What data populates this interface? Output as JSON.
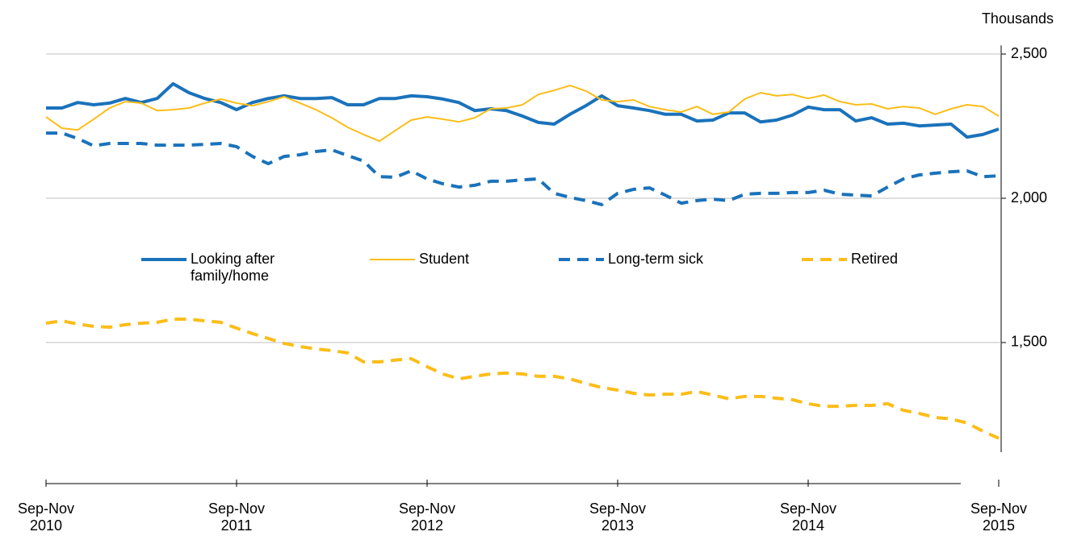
{
  "chart_data": {
    "type": "line",
    "y_unit_label": "Thousands",
    "categories": [
      "Sep-Nov 2010",
      null,
      null,
      null,
      null,
      null,
      null,
      null,
      null,
      null,
      null,
      null,
      "Sep-Nov 2011",
      null,
      null,
      null,
      null,
      null,
      null,
      null,
      null,
      null,
      null,
      null,
      "Sep-Nov 2012",
      null,
      null,
      null,
      null,
      null,
      null,
      null,
      null,
      null,
      null,
      null,
      "Sep-Nov 2013",
      null,
      null,
      null,
      null,
      null,
      null,
      null,
      null,
      null,
      null,
      null,
      "Sep-Nov 2014",
      null,
      null,
      null,
      null,
      null,
      null,
      null,
      null,
      null,
      null,
      null,
      "Sep-Nov 2015"
    ],
    "ylim": [
      1120,
      2530
    ],
    "yticks": [
      {
        "value": 1500,
        "label": "1,500"
      },
      {
        "value": 2000,
        "label": "2,000"
      },
      {
        "value": 2500,
        "label": "2,500"
      }
    ],
    "grid": true,
    "y_axis_side": "right",
    "legend": "center",
    "series": [
      {
        "name": "Looking after family/home",
        "color": "#1a72bb",
        "dashed": false,
        "width": 4,
        "values": [
          2313,
          2313,
          2332,
          2324,
          2330,
          2346,
          2332,
          2346,
          2397,
          2366,
          2346,
          2332,
          2307,
          2332,
          2346,
          2355,
          2346,
          2346,
          2349,
          2324,
          2324,
          2346,
          2346,
          2355,
          2352,
          2344,
          2332,
          2304,
          2310,
          2304,
          2285,
          2263,
          2257,
          2291,
          2321,
          2355,
          2321,
          2313,
          2304,
          2291,
          2291,
          2268,
          2271,
          2296,
          2296,
          2265,
          2271,
          2288,
          2316,
          2307,
          2307,
          2268,
          2279,
          2257,
          2260,
          2251,
          2254,
          2257,
          2212,
          2221,
          2240
        ]
      },
      {
        "name": "Student",
        "color": "#fbbd19",
        "dashed": false,
        "width": 2,
        "values": [
          2282,
          2243,
          2237,
          2274,
          2313,
          2335,
          2330,
          2304,
          2307,
          2313,
          2330,
          2344,
          2330,
          2321,
          2335,
          2352,
          2330,
          2307,
          2279,
          2246,
          2221,
          2198,
          2235,
          2271,
          2282,
          2274,
          2265,
          2279,
          2310,
          2313,
          2324,
          2360,
          2374,
          2391,
          2372,
          2341,
          2335,
          2341,
          2318,
          2307,
          2299,
          2318,
          2291,
          2299,
          2344,
          2366,
          2355,
          2360,
          2346,
          2358,
          2335,
          2324,
          2327,
          2310,
          2318,
          2313,
          2291,
          2310,
          2324,
          2318,
          2285
        ]
      },
      {
        "name": "Long-term sick",
        "color": "#1a72bb",
        "dashed": true,
        "width": 4,
        "values": [
          2226,
          2226,
          2207,
          2182,
          2190,
          2190,
          2190,
          2184,
          2184,
          2184,
          2187,
          2190,
          2179,
          2145,
          2120,
          2145,
          2151,
          2162,
          2168,
          2148,
          2129,
          2075,
          2073,
          2095,
          2067,
          2050,
          2039,
          2045,
          2059,
          2059,
          2064,
          2067,
          2017,
          2003,
          1992,
          1978,
          2017,
          2031,
          2036,
          2011,
          1983,
          1992,
          1997,
          1992,
          2014,
          2017,
          2017,
          2020,
          2020,
          2028,
          2014,
          2011,
          2008,
          2039,
          2067,
          2081,
          2087,
          2092,
          2095,
          2075,
          2078
        ]
      },
      {
        "name": "Retired",
        "color": "#fbbd19",
        "dashed": true,
        "width": 4,
        "values": [
          1567,
          1575,
          1564,
          1556,
          1553,
          1562,
          1567,
          1570,
          1581,
          1581,
          1575,
          1570,
          1550,
          1531,
          1514,
          1497,
          1486,
          1478,
          1472,
          1464,
          1433,
          1433,
          1439,
          1444,
          1416,
          1391,
          1374,
          1383,
          1391,
          1394,
          1391,
          1383,
          1383,
          1374,
          1358,
          1344,
          1335,
          1324,
          1318,
          1321,
          1321,
          1330,
          1318,
          1305,
          1313,
          1313,
          1307,
          1302,
          1288,
          1279,
          1279,
          1282,
          1282,
          1288,
          1265,
          1254,
          1240,
          1235,
          1221,
          1193,
          1168
        ]
      }
    ]
  }
}
